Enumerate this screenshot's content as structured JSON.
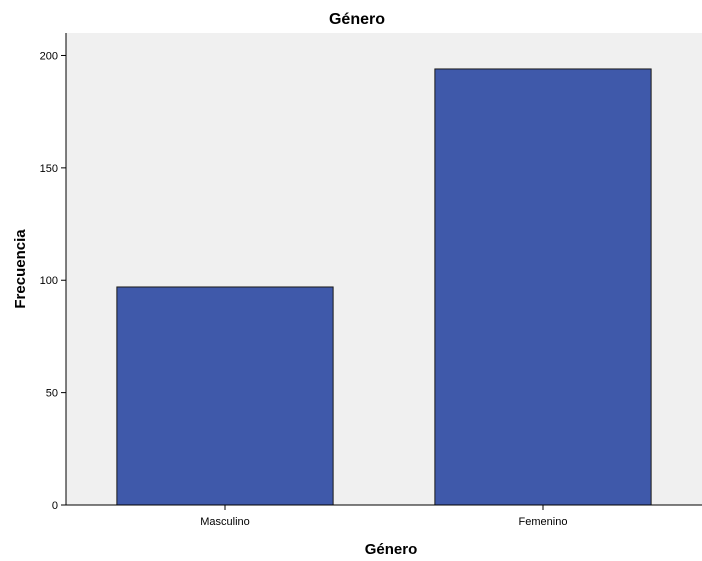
{
  "chart_data": {
    "type": "bar",
    "title": "Género",
    "xlabel": "Género",
    "ylabel": "Frecuencia",
    "categories": [
      "Masculino",
      "Femenino"
    ],
    "values": [
      97,
      194
    ],
    "ylim": [
      0,
      210
    ],
    "yticks": [
      "0",
      "50",
      "100",
      "150",
      "200"
    ],
    "grid": false,
    "legend": "none"
  },
  "colors": {
    "bar_fill": "#3F59AA",
    "bar_stroke": "#1A1A1A",
    "plot_background": "#F0F0F0",
    "axis": "#000000"
  }
}
